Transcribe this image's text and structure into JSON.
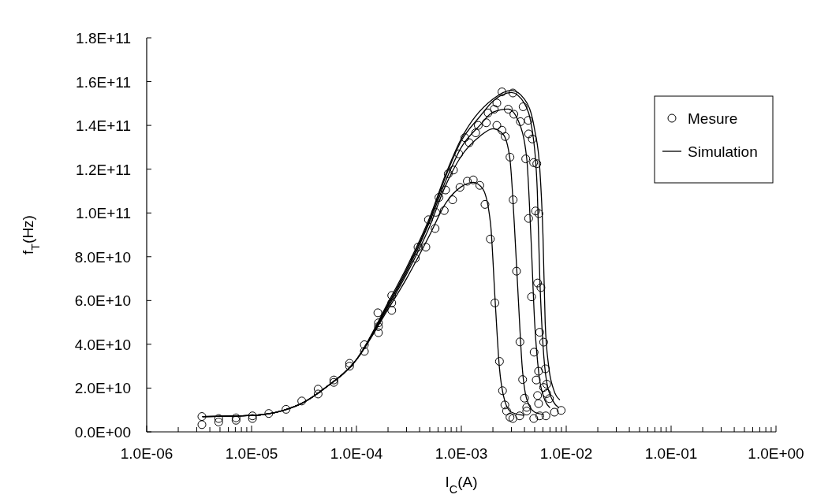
{
  "chart_data": {
    "type": "line",
    "xlabel": "I$_{C}$(A)",
    "ylabel": "f$_{T}$(Hz)",
    "log": "x",
    "grid": false,
    "legend": "top right",
    "xlim": [
      1e-06,
      1
    ],
    "ylim": [
      0,
      180000000000.0
    ],
    "xticks": [
      {
        "value": 1e-06,
        "label": "1.0E-06"
      },
      {
        "value": 2e-06,
        "label": null
      },
      {
        "value": 3e-06,
        "label": null
      },
      {
        "value": 4e-06,
        "label": null
      },
      {
        "value": 5e-06,
        "label": null
      },
      {
        "value": 6e-06,
        "label": null
      },
      {
        "value": 7e-06,
        "label": null
      },
      {
        "value": 8e-06,
        "label": null
      },
      {
        "value": 9e-06,
        "label": null
      },
      {
        "value": 1e-05,
        "label": "1.0E-05"
      },
      {
        "value": 2e-05,
        "label": null
      },
      {
        "value": 3e-05,
        "label": null
      },
      {
        "value": 4e-05,
        "label": null
      },
      {
        "value": 5e-05,
        "label": null
      },
      {
        "value": 6e-05,
        "label": null
      },
      {
        "value": 7e-05,
        "label": null
      },
      {
        "value": 8e-05,
        "label": null
      },
      {
        "value": 9e-05,
        "label": null
      },
      {
        "value": 0.0001,
        "label": "1.0E-04"
      },
      {
        "value": 0.0002,
        "label": null
      },
      {
        "value": 0.0003,
        "label": null
      },
      {
        "value": 0.0004,
        "label": null
      },
      {
        "value": 0.0005,
        "label": null
      },
      {
        "value": 0.0006,
        "label": null
      },
      {
        "value": 0.0007,
        "label": null
      },
      {
        "value": 0.0008,
        "label": null
      },
      {
        "value": 0.0009,
        "label": null
      },
      {
        "value": 0.001,
        "label": "1.0E-03"
      },
      {
        "value": 0.002,
        "label": null
      },
      {
        "value": 0.003,
        "label": null
      },
      {
        "value": 0.004,
        "label": null
      },
      {
        "value": 0.005,
        "label": null
      },
      {
        "value": 0.006,
        "label": null
      },
      {
        "value": 0.007,
        "label": null
      },
      {
        "value": 0.008,
        "label": null
      },
      {
        "value": 0.009,
        "label": null
      },
      {
        "value": 0.01,
        "label": "1.0E-02"
      },
      {
        "value": 0.02,
        "label": null
      },
      {
        "value": 0.03,
        "label": null
      },
      {
        "value": 0.04,
        "label": null
      },
      {
        "value": 0.05,
        "label": null
      },
      {
        "value": 0.06,
        "label": null
      },
      {
        "value": 0.07,
        "label": null
      },
      {
        "value": 0.08,
        "label": null
      },
      {
        "value": 0.09,
        "label": null
      },
      {
        "value": 0.1,
        "label": "1.0E-01"
      },
      {
        "value": 0.2,
        "label": null
      },
      {
        "value": 0.3,
        "label": null
      },
      {
        "value": 0.4,
        "label": null
      },
      {
        "value": 0.5,
        "label": null
      },
      {
        "value": 0.6,
        "label": null
      },
      {
        "value": 0.7,
        "label": null
      },
      {
        "value": 0.8,
        "label": null
      },
      {
        "value": 0.9,
        "label": null
      },
      {
        "value": 1,
        "label": "1.0E+00"
      }
    ],
    "yticks": [
      {
        "value": 0,
        "label": "0.0E+00"
      },
      {
        "value": 20000000000.0,
        "label": "2.0E+10"
      },
      {
        "value": 40000000000.0,
        "label": "4.0E+10"
      },
      {
        "value": 60000000000.0,
        "label": "6.0E+10"
      },
      {
        "value": 80000000000.0,
        "label": "8.0E+10"
      },
      {
        "value": 100000000000.0,
        "label": "1.0E+11"
      },
      {
        "value": 120000000000.0,
        "label": "1.2E+11"
      },
      {
        "value": 140000000000.0,
        "label": "1.4E+11"
      },
      {
        "value": 160000000000.0,
        "label": "1.6E+11"
      },
      {
        "value": 180000000000.0,
        "label": "1.8E+11"
      }
    ],
    "series": [
      {
        "name": "Mesure",
        "type": "scatter",
        "marker": "circle",
        "color": "#000000",
        "x": [
          3.36e-06,
          3.36e-06,
          4.86e-06,
          4.86e-06,
          7.11e-06,
          7.11e-06,
          1.02e-05,
          1.02e-05,
          1.46e-05,
          2.13e-05,
          3.01e-05,
          4.31e-05,
          4.31e-05,
          6.09e-05,
          6.09e-05,
          8.6e-05,
          8.6e-05,
          0.000119,
          0.000119,
          0.00016,
          0.000162,
          0.000162,
          0.000162,
          0.000217,
          0.000217,
          0.000217,
          0.000364,
          0.000386,
          0.000459,
          0.000486,
          0.000562,
          0.00057,
          0.000612,
          0.000687,
          0.000708,
          0.00075,
          0.000826,
          0.000841,
          0.000944,
          0.00097,
          0.00108,
          0.00119,
          0.00114,
          0.0013,
          0.00137,
          0.0015,
          0.00145,
          0.00173,
          0.00168,
          0.00189,
          0.0018,
          0.00206,
          0.00218,
          0.00218,
          0.00244,
          0.00244,
          0.00262,
          0.00291,
          0.00312,
          0.0028,
          0.0031,
          0.00317,
          0.00366,
          0.00388,
          0.00411,
          0.00435,
          0.00438,
          0.00438,
          0.00475,
          0.00489,
          0.00524,
          0.0051,
          0.00548,
          0.00209,
          0.00231,
          0.00247,
          0.0026,
          0.0027,
          0.00291,
          0.00336,
          0.00362,
          0.00384,
          0.004,
          0.0042,
          0.00467,
          0.00494,
          0.00518,
          0.00533,
          0.00545,
          0.00533,
          0.00574,
          0.00558,
          0.00609,
          0.00545,
          0.00634,
          0.00609,
          0.00652,
          0.00652,
          0.00692,
          0.0031,
          0.0036,
          0.0042,
          0.0049,
          0.0056,
          0.0064,
          0.00771,
          0.00895
        ],
        "values": [
          7000000000.0,
          3300000000.0,
          6100000000.0,
          4500000000.0,
          6400000000.0,
          5300000000.0,
          7300000000.0,
          6100000000.0,
          8400000000.0,
          10300000000.0,
          14100000000.0,
          19500000000.0,
          17300000000.0,
          23700000000.0,
          22600000000.0,
          31300000000.0,
          30000000000.0,
          39800000000.0,
          36800000000.0,
          54400000000.0,
          49800000000.0,
          48100000000.0,
          45300000000.0,
          62300000000.0,
          58900000000.0,
          55500000000.0,
          79300000000.0,
          84400000000.0,
          84400000000.0,
          96900000000.0,
          92900000000.0,
          100300000000.0,
          107100000000.0,
          101100000000.0,
          110500000000.0,
          117900000000.0,
          106000000000.0,
          119600000000.0,
          127000000000.0,
          111700000000.0,
          134400000000.0,
          132100000000.0,
          114500000000.0,
          115100000000.0,
          136600000000.0,
          112600000000.0,
          140000000000.0,
          141200000000.0,
          103900000000.0,
          88100000000.0,
          145700000000.0,
          147400000000.0,
          140000000000.0,
          150200000000.0,
          155300000000.0,
          137800000000.0,
          134900000000.0,
          125500000000.0,
          106000000000.0,
          147400000000.0,
          154800000000.0,
          145100000000.0,
          141700000000.0,
          148500000000.0,
          124700000000.0,
          142300000000.0,
          97500000000.0,
          136100000000.0,
          133800000000.0,
          123000000000.0,
          122500000000.0,
          100900000000.0,
          99700000000.0,
          58900000000.0,
          32200000000.0,
          18800000000.0,
          12300000000.0,
          9500000000.0,
          6700000000.0,
          73400000000.0,
          41100000000.0,
          23900000000.0,
          15400000000.0,
          11200000000.0,
          61700000000.0,
          36400000000.0,
          23700000000.0,
          16600000000.0,
          12900000000.0,
          68000000000.0,
          65900000000.0,
          45500000000.0,
          41000000000.0,
          27700000000.0,
          28800000000.0,
          20300000000.0,
          21800000000.0,
          17500000000.0,
          15200000000.0,
          6100000000.0,
          7300000000.0,
          9500000000.0,
          6100000000.0,
          7300000000.0,
          7300000000.0,
          9000000000.0,
          9800000000.0
        ]
      },
      {
        "name": "Simulation",
        "color": "#000000",
        "x": [
          3.4e-06,
          1e-05,
          2e-05,
          3e-05,
          5e-05,
          0.0001,
          0.0002,
          0.0003,
          0.0005,
          0.0007,
          0.001,
          0.0013,
          0.0016,
          0.0019,
          0.0021,
          0.0023,
          0.0026,
          0.003,
          0.004
        ],
        "values": [
          7000000000.0,
          7500000000.0,
          9800000000.0,
          13000000000.0,
          20000000000.0,
          33000000000.0,
          56000000000.0,
          70000000000.0,
          90000000000.0,
          104000000000.0,
          112000000000.0,
          114000000000.0,
          111000000000.0,
          95000000000.0,
          60000000000.0,
          30000000000.0,
          14000000000.0,
          9000000000.0,
          7500000000.0
        ]
      },
      {
        "color": "#000000",
        "x": [
          3.4e-06,
          1e-05,
          2e-05,
          3e-05,
          5e-05,
          0.0001,
          0.0002,
          0.0003,
          0.0005,
          0.0007,
          0.001,
          0.0015,
          0.002,
          0.0025,
          0.0029,
          0.0032,
          0.0035,
          0.0038,
          0.0042,
          0.005,
          0.006
        ],
        "values": [
          7000000000.0,
          7500000000.0,
          9800000000.0,
          13000000000.0,
          20000000000.0,
          33000000000.0,
          57000000000.0,
          72000000000.0,
          94000000000.0,
          112000000000.0,
          126000000000.0,
          135000000000.0,
          138500000000.0,
          136000000000.0,
          125000000000.0,
          95000000000.0,
          60000000000.0,
          30000000000.0,
          15000000000.0,
          9000000000.0,
          8000000000.0
        ]
      },
      {
        "color": "#000000",
        "x": [
          3.4e-06,
          1e-05,
          2e-05,
          3e-05,
          5e-05,
          0.0001,
          0.0002,
          0.0003,
          0.0005,
          0.0007,
          0.001,
          0.0015,
          0.002,
          0.0028,
          0.0035,
          0.0042,
          0.0046,
          0.005,
          0.0055,
          0.0062,
          0.007
        ],
        "values": [
          7000000000.0,
          7500000000.0,
          9800000000.0,
          13000000000.0,
          20000000000.0,
          33000000000.0,
          58000000000.0,
          73000000000.0,
          96000000000.0,
          114000000000.0,
          130000000000.0,
          140000000000.0,
          146000000000.0,
          147500000000.0,
          142000000000.0,
          125000000000.0,
          90000000000.0,
          50000000000.0,
          26000000000.0,
          15000000000.0,
          11000000000.0
        ]
      },
      {
        "color": "#000000",
        "x": [
          3.4e-06,
          1e-05,
          2e-05,
          3e-05,
          5e-05,
          0.0001,
          0.0002,
          0.0003,
          0.0005,
          0.0007,
          0.001,
          0.0015,
          0.002,
          0.003,
          0.004,
          0.0048,
          0.0053,
          0.0056,
          0.006,
          0.0065,
          0.0075,
          0.0085
        ],
        "values": [
          7000000000.0,
          7500000000.0,
          9800000000.0,
          13000000000.0,
          20000000000.0,
          33000000000.0,
          58000000000.0,
          74000000000.0,
          97000000000.0,
          116000000000.0,
          133000000000.0,
          144000000000.0,
          151000000000.0,
          155000000000.0,
          150000000000.0,
          136000000000.0,
          110000000000.0,
          70000000000.0,
          40000000000.0,
          23000000000.0,
          14000000000.0,
          11000000000.0
        ]
      },
      {
        "color": "#000000",
        "x": [
          3.4e-06,
          1e-05,
          2e-05,
          3e-05,
          5e-05,
          0.0001,
          0.0002,
          0.0003,
          0.0005,
          0.0007,
          0.001,
          0.002,
          0.003,
          0.004,
          0.005,
          0.0056,
          0.006,
          0.0063,
          0.0068,
          0.0075,
          0.0087
        ],
        "values": [
          7000000000.0,
          7500000000.0,
          9800000000.0,
          13000000000.0,
          20000000000.0,
          33000000000.0,
          59000000000.0,
          75000000000.0,
          98000000000.0,
          117000000000.0,
          134000000000.0,
          152000000000.0,
          156000000000.0,
          152000000000.0,
          138000000000.0,
          120000000000.0,
          90000000000.0,
          50000000000.0,
          30000000000.0,
          20000000000.0,
          14600000000.0
        ]
      }
    ]
  }
}
